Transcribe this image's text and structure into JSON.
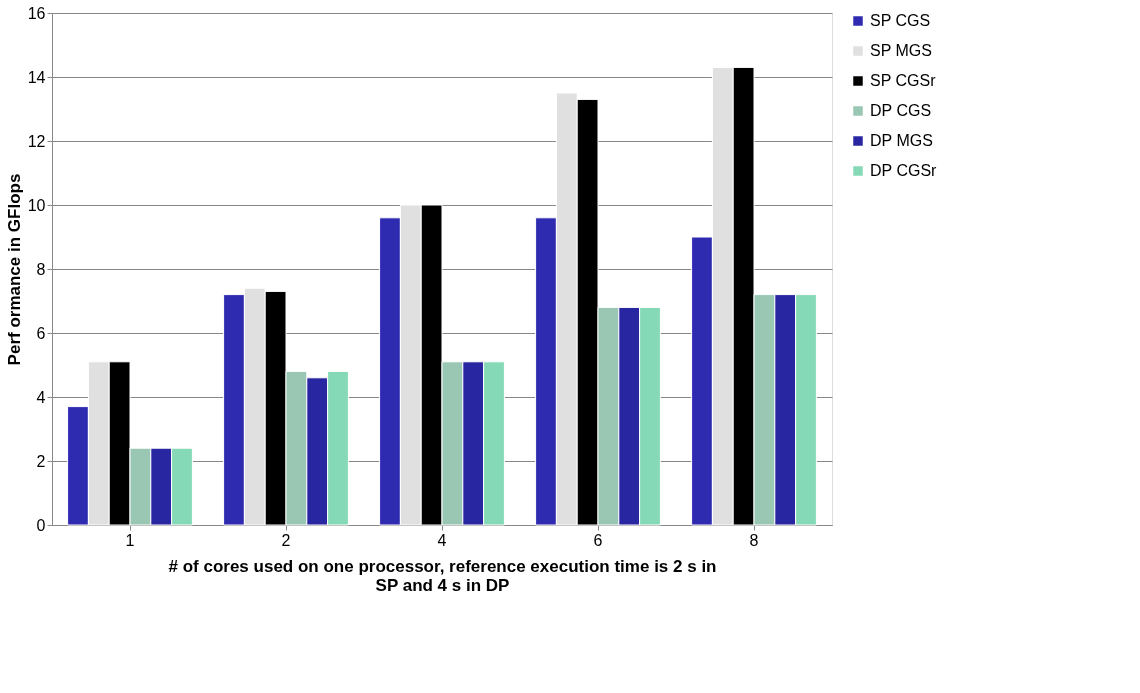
{
  "chart_data": {
    "type": "bar",
    "xlabel": "# of cores used on one processor, reference execution time is 2 s in\nSP and 4 s in DP",
    "ylabel": "Perf ormance in GFlops",
    "categories": [
      "1",
      "2",
      "4",
      "6",
      "8"
    ],
    "series": [
      {
        "name": "SP CGS",
        "color": "#2e2bb0",
        "values": [
          3.7,
          7.2,
          9.6,
          9.6,
          9.0
        ]
      },
      {
        "name": "SP MGS",
        "color": "#e0e0e0",
        "values": [
          5.1,
          7.4,
          10.0,
          13.5,
          14.3
        ]
      },
      {
        "name": "SP CGSr",
        "color": "#000000",
        "values": [
          5.1,
          7.3,
          10.0,
          13.3,
          14.3
        ]
      },
      {
        "name": "DP CGS",
        "color": "#99c7b3",
        "values": [
          2.4,
          4.8,
          5.1,
          6.8,
          7.2
        ]
      },
      {
        "name": "DP MGS",
        "color": "#2826a0",
        "values": [
          2.4,
          4.6,
          5.1,
          6.8,
          7.2
        ]
      },
      {
        "name": "DP CGSr",
        "color": "#86d9b6",
        "values": [
          2.4,
          4.8,
          5.1,
          6.8,
          7.2
        ]
      }
    ],
    "ylim": [
      0,
      16
    ],
    "yticks": [
      0,
      2,
      4,
      6,
      8,
      10,
      12,
      14,
      16
    ],
    "grid": "y",
    "legend": "right"
  }
}
